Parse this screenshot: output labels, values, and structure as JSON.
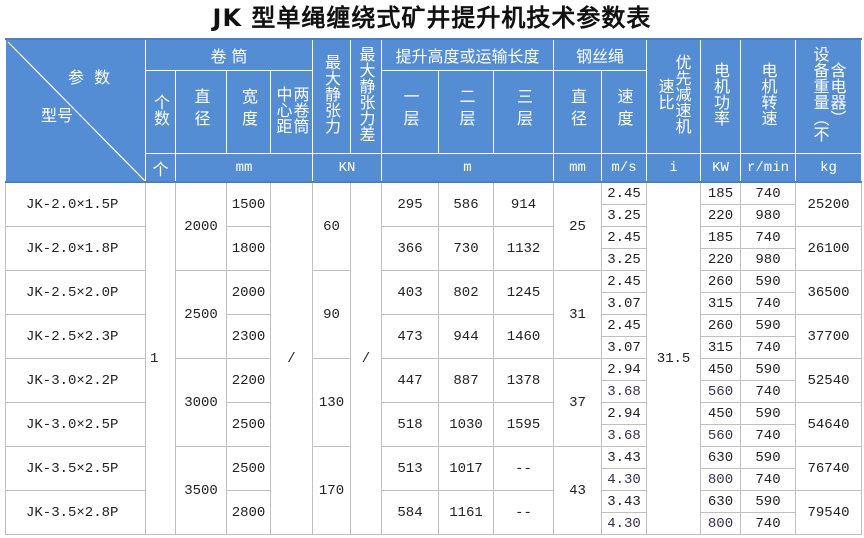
{
  "title": "JK 型单绳缠绕式矿井提升机技术参数表",
  "header": {
    "corner_top": "参  数",
    "corner_bottom": "型号",
    "drum": "卷 筒",
    "count": "个数",
    "drum_dia": "直径",
    "drum_width": "宽度",
    "center_dist": "两卷筒中心距",
    "max_tension": "最大静张力",
    "max_tension_diff": "最大静张力差",
    "lift": "提升高度或运输长度",
    "layer1": "一层",
    "layer2": "二层",
    "layer3": "三层",
    "rope": "钢丝绳",
    "rope_dia": "直径",
    "rope_speed": "速度",
    "ratio": "优先减速机速比",
    "motor_power": "电机功率",
    "motor_speed": "电机转速",
    "weight": "设备重量（不含电器）",
    "units": {
      "count": "个",
      "drum": "mm",
      "tension": "KN",
      "lift": "m",
      "rope_dia": "mm",
      "speed": "m/s",
      "ratio": "i",
      "power": "KW",
      "rpm": "r/min",
      "weight": "kg"
    }
  },
  "shared": {
    "count": "1",
    "center_dist": "/",
    "tension_diff": "/",
    "ratio": "31.5"
  },
  "groups": [
    {
      "drum_dia": "2000",
      "max_tension": "60",
      "rope_dia": "25",
      "models": [
        {
          "model": "JK-2.0×1.5P",
          "width": "1500",
          "l1": "295",
          "l2": "586",
          "l3": "914",
          "speeds": [
            "2.45",
            "3.25"
          ],
          "power": [
            "185",
            "220"
          ],
          "rpm": [
            "740",
            "980"
          ],
          "weight": "25200"
        },
        {
          "model": "JK-2.0×1.8P",
          "width": "1800",
          "l1": "366",
          "l2": "730",
          "l3": "1132",
          "speeds": [
            "2.45",
            "3.25"
          ],
          "power": [
            "185",
            "220"
          ],
          "rpm": [
            "740",
            "980"
          ],
          "weight": "26100"
        }
      ]
    },
    {
      "drum_dia": "2500",
      "max_tension": "90",
      "rope_dia": "31",
      "models": [
        {
          "model": "JK-2.5×2.0P",
          "width": "2000",
          "l1": "403",
          "l2": "802",
          "l3": "1245",
          "speeds": [
            "2.45",
            "3.07"
          ],
          "power": [
            "260",
            "315"
          ],
          "rpm": [
            "590",
            "740"
          ],
          "weight": "36500"
        },
        {
          "model": "JK-2.5×2.3P",
          "width": "2300",
          "l1": "473",
          "l2": "944",
          "l3": "1460",
          "speeds": [
            "2.45",
            "3.07"
          ],
          "power": [
            "260",
            "315"
          ],
          "rpm": [
            "590",
            "740"
          ],
          "weight": "37700"
        }
      ]
    },
    {
      "drum_dia": "3000",
      "max_tension": "130",
      "rope_dia": "37",
      "models": [
        {
          "model": "JK-3.0×2.2P",
          "width": "2200",
          "l1": "447",
          "l2": "887",
          "l3": "1378",
          "speeds": [
            "2.94",
            "3.68"
          ],
          "power": [
            "450",
            "560"
          ],
          "rpm": [
            "590",
            "740"
          ],
          "weight": "52540"
        },
        {
          "model": "JK-3.0×2.5P",
          "width": "2500",
          "l1": "518",
          "l2": "1030",
          "l3": "1595",
          "speeds": [
            "2.94",
            "3.68"
          ],
          "power": [
            "450",
            "560"
          ],
          "rpm": [
            "590",
            "740"
          ],
          "weight": "54640"
        }
      ]
    },
    {
      "drum_dia": "3500",
      "max_tension": "170",
      "rope_dia": "43",
      "models": [
        {
          "model": "JK-3.5×2.5P",
          "width": "2500",
          "l1": "513",
          "l2": "1017",
          "l3": "--",
          "speeds": [
            "3.43",
            "4.30"
          ],
          "power": [
            "630",
            "800"
          ],
          "rpm": [
            "590",
            "740"
          ],
          "weight": "76740"
        },
        {
          "model": "JK-3.5×2.8P",
          "width": "2800",
          "l1": "584",
          "l2": "1161",
          "l3": "--",
          "speeds": [
            "3.43",
            "4.30"
          ],
          "power": [
            "630",
            "800"
          ],
          "rpm": [
            "590",
            "740"
          ],
          "weight": "79540"
        }
      ]
    }
  ],
  "colors": {
    "header_bg": "#548dd4",
    "header_text": "#ffffff",
    "grid": "#c0c0c0"
  }
}
